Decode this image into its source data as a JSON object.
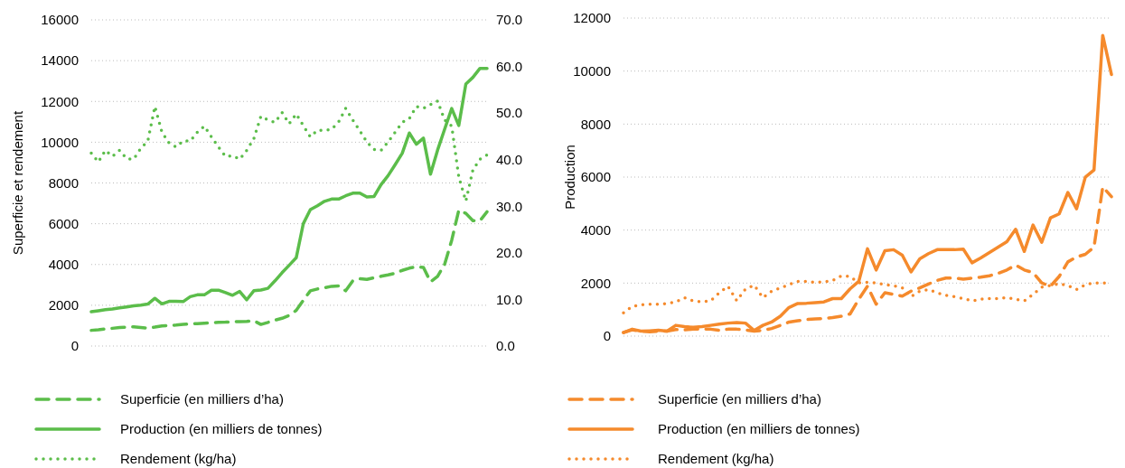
{
  "chart_data": [
    {
      "type": "line",
      "ylabel": "Superficie et rendement",
      "categories": [
        null,
        null,
        null,
        null,
        null,
        null,
        null,
        null,
        null,
        null,
        null,
        null,
        null,
        null,
        null,
        null,
        null,
        null,
        null,
        null,
        null,
        null,
        null,
        null,
        null,
        null,
        null,
        null,
        null,
        null,
        null,
        null,
        null,
        null,
        null,
        null,
        null,
        null,
        null,
        null,
        null,
        null,
        null,
        null,
        null,
        null,
        null,
        null,
        null,
        null,
        null,
        null,
        null,
        null,
        null,
        null,
        null
      ],
      "ylim": [
        0,
        16000
      ],
      "yticks": [
        0,
        2000,
        4000,
        6000,
        8000,
        10000,
        12000,
        14000,
        16000
      ],
      "y2lim": [
        0,
        70
      ],
      "y2ticks": [
        {
          "value": 0,
          "label": "0.0"
        },
        {
          "value": 10,
          "label": "10.0"
        },
        {
          "value": 20,
          "label": "20.0"
        },
        {
          "value": 30,
          "label": "30.0"
        },
        {
          "value": 40,
          "label": "40.0"
        },
        {
          "value": 50,
          "label": "50.0"
        },
        {
          "value": 60,
          "label": "60.0"
        },
        {
          "value": 70,
          "label": "70.0"
        }
      ],
      "grid": "y",
      "legend": "bottom",
      "series": [
        {
          "name": "Superficie (en milliers d’ha)",
          "color": "#5bbd4a",
          "line_style": "dashed",
          "values": [
            770,
            800,
            840,
            870,
            910,
            930,
            940,
            910,
            880,
            930,
            990,
            1010,
            1030,
            1060,
            1090,
            1100,
            1120,
            1140,
            1160,
            1170,
            1190,
            1200,
            1210,
            1240,
            1060,
            1160,
            1270,
            1360,
            1500,
            1750,
            2240,
            2710,
            2800,
            2860,
            2930,
            2950,
            2710,
            3200,
            3300,
            3270,
            3350,
            3420,
            3490,
            3570,
            3710,
            3820,
            3890,
            3860,
            3150,
            3420,
            4010,
            5190,
            6660,
            6510,
            6150,
            6150,
            6590
          ]
        },
        {
          "name": "Production (en milliers de tonnes)",
          "color": "#5bbd4a",
          "line_style": "solid",
          "values": [
            1680,
            1730,
            1780,
            1820,
            1870,
            1920,
            1970,
            2010,
            2060,
            2340,
            2070,
            2190,
            2190,
            2180,
            2420,
            2510,
            2510,
            2740,
            2740,
            2620,
            2490,
            2680,
            2270,
            2710,
            2750,
            2830,
            3200,
            3600,
            3960,
            4330,
            6000,
            6690,
            6880,
            7100,
            7210,
            7210,
            7370,
            7500,
            7500,
            7310,
            7330,
            7920,
            8360,
            8900,
            9460,
            10450,
            9900,
            10200,
            8430,
            9610,
            10640,
            11650,
            10820,
            12850,
            13180,
            13620,
            13620
          ]
        },
        {
          "name": "Rendement (kg/ha)",
          "color": "#5bbd4a",
          "line_style": "dotted",
          "axis": "y2",
          "values": [
            41.4,
            39.5,
            42.0,
            40.7,
            42.0,
            40.2,
            40.1,
            42.4,
            44.0,
            51.4,
            45.9,
            43.6,
            42.7,
            44.0,
            44.0,
            45.9,
            47.2,
            44.9,
            42.7,
            40.7,
            40.8,
            40.1,
            42.0,
            44.5,
            49.3,
            48.5,
            48.0,
            50.1,
            47.7,
            49.8,
            47.3,
            44.9,
            46.3,
            46.3,
            46.5,
            48.1,
            51.0,
            48.5,
            46.2,
            43.8,
            42.2,
            42.0,
            43.8,
            45.9,
            48.0,
            48.8,
            51.4,
            51.0,
            51.8,
            52.6,
            48.5,
            47.2,
            36.3,
            31.1,
            37.8,
            40.1,
            41.0
          ]
        }
      ]
    },
    {
      "type": "line",
      "ylabel": "Production",
      "categories": [
        null,
        null,
        null,
        null,
        null,
        null,
        null,
        null,
        null,
        null,
        null,
        null,
        null,
        null,
        null,
        null,
        null,
        null,
        null,
        null,
        null,
        null,
        null,
        null,
        null,
        null,
        null,
        null,
        null,
        null,
        null,
        null,
        null,
        null,
        null,
        null,
        null,
        null,
        null,
        null,
        null,
        null,
        null,
        null,
        null,
        null,
        null,
        null,
        null,
        null,
        null,
        null,
        null,
        null,
        null,
        null,
        null
      ],
      "ylim": [
        0,
        12000
      ],
      "yticks": [
        0,
        2000,
        4000,
        6000,
        8000,
        10000,
        12000
      ],
      "grid": "y",
      "legend": "bottom",
      "series": [
        {
          "name": "Superficie (en milliers d’ha)",
          "color": "#f58a2c",
          "line_style": "dashed",
          "values": [
            135,
            235,
            185,
            160,
            185,
            185,
            245,
            235,
            260,
            260,
            260,
            220,
            260,
            260,
            235,
            185,
            220,
            285,
            405,
            530,
            580,
            625,
            650,
            665,
            700,
            750,
            835,
            1390,
            1880,
            1205,
            1635,
            1575,
            1510,
            1695,
            1820,
            1965,
            2100,
            2190,
            2190,
            2150,
            2190,
            2225,
            2275,
            2370,
            2495,
            2680,
            2495,
            2395,
            2005,
            1880,
            2250,
            2800,
            2985,
            3085,
            3355,
            5630,
            5260
          ]
        },
        {
          "name": "Production (en milliers de tonnes)",
          "color": "#f58a2c",
          "line_style": "solid",
          "values": [
            135,
            260,
            185,
            200,
            220,
            185,
            405,
            355,
            330,
            355,
            405,
            455,
            490,
            515,
            490,
            210,
            405,
            530,
            750,
            1080,
            1230,
            1240,
            1265,
            1290,
            1415,
            1415,
            1780,
            2065,
            3295,
            2495,
            3220,
            3260,
            3050,
            2420,
            2915,
            3110,
            3260,
            3260,
            3260,
            3280,
            2765,
            2950,
            3150,
            3355,
            3565,
            4030,
            3195,
            4190,
            3540,
            4460,
            4610,
            5420,
            4805,
            5995,
            6270,
            11345,
            9870
          ]
        },
        {
          "name": "Rendement (kg/ha)",
          "color": "#f58a2c",
          "line_style": "dotted",
          "values": [
            875,
            1120,
            1180,
            1205,
            1205,
            1230,
            1290,
            1450,
            1330,
            1290,
            1330,
            1635,
            1880,
            1330,
            1780,
            1920,
            1450,
            1695,
            1820,
            1940,
            2065,
            2065,
            2030,
            2040,
            2100,
            2275,
            2250,
            2005,
            2030,
            2005,
            1940,
            1905,
            1820,
            1490,
            1695,
            1760,
            1635,
            1535,
            1490,
            1415,
            1330,
            1390,
            1415,
            1415,
            1450,
            1390,
            1330,
            1575,
            1845,
            1905,
            1980,
            1905,
            1760,
            1940,
            2005,
            2005,
            2005
          ]
        }
      ]
    }
  ]
}
